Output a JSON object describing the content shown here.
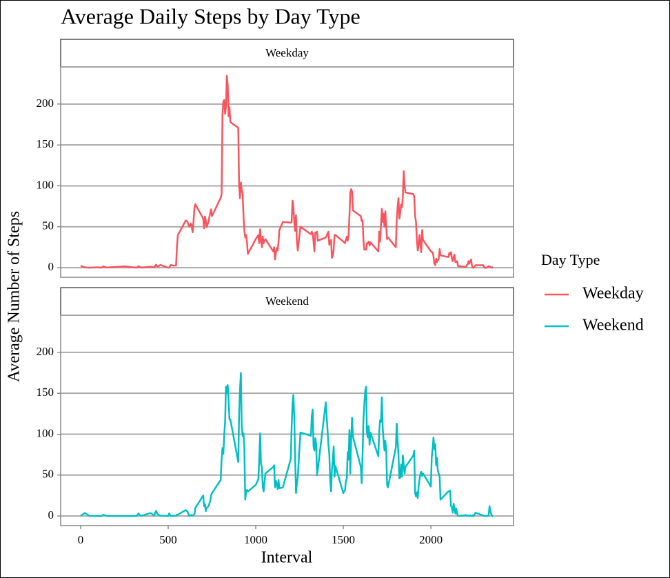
{
  "chart_data": {
    "type": "line",
    "title": "Average Daily Steps by Day Type",
    "x_label": "Interval",
    "y_label": "Average Number of Steps",
    "legend_title": "Day Type",
    "facet_by_series": true,
    "grid": true,
    "xlim": [
      -114,
      2472
    ],
    "ylim": [
      -11.7,
      245.4
    ],
    "xticks": [
      0,
      500,
      1000,
      1500,
      2000
    ],
    "yticks": [
      0,
      50,
      100,
      150,
      200
    ],
    "x": [
      0,
      25,
      50,
      100,
      120,
      130,
      150,
      250,
      320,
      330,
      345,
      400,
      420,
      430,
      440,
      455,
      500,
      505,
      515,
      530,
      545,
      550,
      555,
      600,
      610,
      620,
      630,
      640,
      650,
      655,
      700,
      705,
      710,
      715,
      720,
      730,
      740,
      745,
      750,
      800,
      805,
      810,
      815,
      820,
      825,
      830,
      835,
      840,
      845,
      850,
      855,
      900,
      905,
      910,
      915,
      920,
      925,
      930,
      935,
      940,
      945,
      950,
      955,
      1000,
      1015,
      1020,
      1025,
      1030,
      1035,
      1040,
      1045,
      1055,
      1100,
      1105,
      1110,
      1115,
      1120,
      1125,
      1130,
      1135,
      1155,
      1200,
      1205,
      1210,
      1215,
      1220,
      1225,
      1230,
      1235,
      1240,
      1255,
      1315,
      1320,
      1325,
      1330,
      1335,
      1340,
      1345,
      1350,
      1355,
      1400,
      1415,
      1420,
      1425,
      1430,
      1435,
      1440,
      1445,
      1450,
      1455,
      1500,
      1510,
      1515,
      1520,
      1525,
      1530,
      1535,
      1540,
      1545,
      1550,
      1555,
      1600,
      1605,
      1610,
      1615,
      1620,
      1625,
      1630,
      1635,
      1640,
      1645,
      1650,
      1655,
      1700,
      1705,
      1710,
      1715,
      1720,
      1725,
      1730,
      1735,
      1740,
      1745,
      1750,
      1755,
      1800,
      1805,
      1810,
      1815,
      1820,
      1825,
      1830,
      1835,
      1840,
      1845,
      1850,
      1855,
      1900,
      1905,
      1910,
      1915,
      1920,
      1925,
      1930,
      1935,
      1940,
      1945,
      1950,
      1955,
      2000,
      2005,
      2010,
      2015,
      2020,
      2025,
      2030,
      2035,
      2040,
      2045,
      2050,
      2055,
      2100,
      2105,
      2110,
      2115,
      2120,
      2125,
      2130,
      2135,
      2140,
      2145,
      2150,
      2155,
      2200,
      2205,
      2210,
      2215,
      2220,
      2225,
      2230,
      2235,
      2240,
      2245,
      2250,
      2255,
      2300,
      2305,
      2310,
      2315,
      2320,
      2325,
      2330,
      2335,
      2340,
      2345,
      2350,
      2355
    ],
    "series": [
      {
        "name": "Weekday",
        "color": "#f9545d",
        "values": [
          2.3,
          0.4,
          0.1,
          0.4,
          0.1,
          1.6,
          0.2,
          1.6,
          0,
          1.8,
          0.1,
          1.2,
          0.3,
          3.6,
          1.1,
          3.4,
          0,
          0,
          3.4,
          2.5,
          2.6,
          25.8,
          39.6,
          57.8,
          56.2,
          50,
          54,
          43.3,
          72.5,
          77.6,
          60,
          48,
          62.5,
          57.5,
          49.6,
          56.3,
          67,
          71.4,
          63,
          85.5,
          90,
          186.6,
          203.1,
          205,
          188,
          197,
          234.5,
          223,
          185,
          196,
          178,
          171,
          102,
          85,
          104,
          95,
          90,
          64,
          45,
          37,
          40,
          31,
          17,
          35,
          40,
          30,
          47,
          34,
          25,
          38,
          30,
          35,
          20,
          25,
          10,
          18,
          24,
          21,
          31,
          46,
          56,
          55,
          56,
          82,
          74,
          56,
          45,
          64,
          32,
          21,
          50,
          41,
          44,
          42,
          32,
          20,
          43,
          43,
          44,
          33,
          37,
          44,
          28,
          32,
          34,
          12,
          15,
          22,
          40,
          40,
          32,
          30,
          34,
          38,
          33,
          40,
          63,
          92,
          96,
          93,
          70,
          63,
          57,
          58,
          34,
          22,
          23,
          22,
          30,
          30,
          32,
          27,
          31,
          20,
          44,
          32,
          52,
          72,
          56,
          66,
          50,
          69,
          50,
          35,
          37,
          25,
          58,
          74,
          85,
          60,
          67,
          77,
          74,
          87,
          118,
          100,
          92,
          90,
          87,
          63,
          56,
          35,
          21,
          27,
          40,
          30,
          19,
          46,
          34,
          20,
          19,
          19,
          14,
          5,
          3,
          11,
          7,
          9,
          11,
          23,
          15,
          13,
          18,
          16,
          19,
          11,
          8,
          13,
          16,
          7,
          7,
          8,
          2,
          1,
          3,
          4,
          8,
          5,
          8,
          10,
          2,
          0,
          0,
          1,
          3,
          3,
          0,
          0,
          0,
          0,
          1,
          2,
          1,
          1,
          0,
          0,
          1
        ]
      },
      {
        "name": "Weekend",
        "color": "#00bfc4",
        "values": [
          0.2,
          3.7,
          0.1,
          0,
          0,
          1.5,
          0,
          0,
          0,
          3,
          0,
          3.6,
          0.5,
          6.2,
          2,
          0.5,
          0,
          3,
          0,
          0.3,
          0.2,
          1.4,
          1.6,
          7.2,
          5.4,
          0,
          1,
          0.5,
          2.3,
          9.7,
          25,
          11.9,
          14.2,
          6,
          10,
          12,
          18.1,
          25.2,
          27.9,
          44.2,
          69,
          83.1,
          76,
          99,
          115,
          158,
          151,
          160,
          140,
          118,
          118,
          66,
          124,
          154,
          175,
          110,
          98,
          101,
          83,
          20,
          30,
          32,
          30,
          38,
          45,
          70,
          101,
          64,
          60,
          36,
          30,
          52,
          60,
          62,
          35,
          43,
          39,
          33,
          44,
          34,
          35,
          70,
          110,
          137,
          148,
          120,
          70,
          28,
          40,
          48,
          102,
          98,
          122,
          130,
          85,
          80,
          95,
          88,
          50,
          58,
          139,
          87,
          76,
          45,
          30,
          57,
          68,
          85,
          48,
          61,
          28,
          32,
          43,
          46,
          78,
          69,
          105,
          52,
          95,
          120,
          97,
          60,
          40,
          76,
          118,
          137,
          152,
          158,
          102,
          96,
          110,
          87,
          102,
          73,
          103,
          117,
          115,
          145,
          108,
          93,
          80,
          92,
          80,
          38,
          35,
          84,
          113,
          92,
          75,
          46,
          47,
          63,
          48,
          74,
          62,
          52,
          60,
          74,
          80,
          28,
          24,
          29,
          22,
          36,
          45,
          51,
          54,
          49,
          52,
          36,
          72,
          82,
          96,
          82,
          88,
          62,
          71,
          55,
          52,
          48,
          20,
          30,
          30,
          31,
          12,
          11,
          4,
          15,
          10,
          3,
          9,
          3,
          0,
          1,
          0,
          1,
          0,
          0,
          1,
          0,
          0,
          1,
          0,
          2,
          4,
          0.5,
          0,
          0,
          0,
          0,
          0,
          1,
          12,
          6,
          2,
          0,
          0
        ]
      }
    ]
  }
}
